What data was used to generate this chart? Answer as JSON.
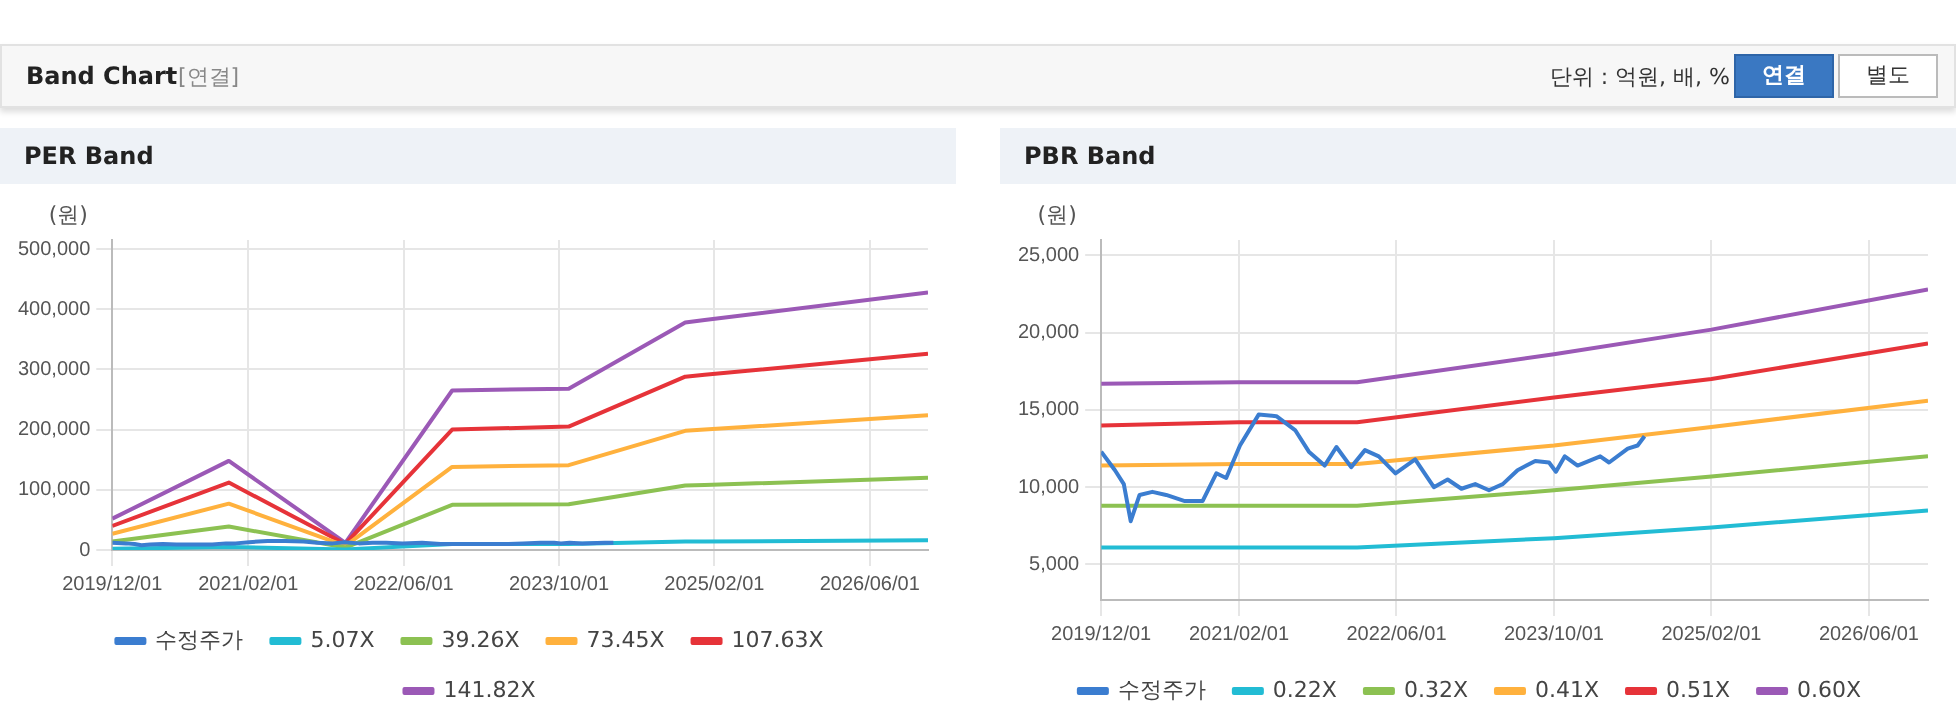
{
  "chart_data": [
    {
      "type": "other",
      "title": "Band Chart",
      "annotations": [
        "[연결]",
        "단위 : 억원, 배, %",
        "연결",
        "별도"
      ]
    },
    {
      "type": "line",
      "title": "PER Band",
      "ylabel": "(원)",
      "legend": "bottom",
      "grid": true,
      "marker": "none",
      "line_style": "solid",
      "xlim": [
        "2019-12-01",
        "2026-12-01"
      ],
      "xticks": [
        {
          "value": "2019-12-01",
          "label": "2019/12/01"
        },
        {
          "value": "2021-02-01",
          "label": "2021/02/01"
        },
        {
          "value": "2022-06-01",
          "label": "2022/06/01"
        },
        {
          "value": "2023-10-01",
          "label": "2023/10/01"
        },
        {
          "value": "2025-02-01",
          "label": "2025/02/01"
        },
        {
          "value": "2026-06-01",
          "label": "2026/06/01"
        }
      ],
      "ylim": [
        0,
        515000
      ],
      "yticks": [
        {
          "value": 0,
          "label": "0"
        },
        {
          "value": 100000,
          "label": "100,000"
        },
        {
          "value": 200000,
          "label": "200,000"
        },
        {
          "value": 300000,
          "label": "300,000"
        },
        {
          "value": 400000,
          "label": "400,000"
        },
        {
          "value": 500000,
          "label": "500,000"
        }
      ],
      "x": [
        "2019-12-01",
        "2020-12-01",
        "2021-12-01",
        "2022-11-01",
        "2023-11-01",
        "2024-11-01",
        "2025-01-01",
        "2026-12-01"
      ],
      "series": [
        {
          "name": "수정주가",
          "color": "#3b7dd0",
          "x": [
            "2019-12-01",
            "2020-01-13",
            "2020-02-10",
            "2020-03-01",
            "2020-03-28",
            "2020-05-07",
            "2020-06-19",
            "2020-08-16",
            "2020-10-10",
            "2020-11-22",
            "2020-12-22",
            "2021-02-04",
            "2021-04-01",
            "2021-05-25",
            "2021-07-22",
            "2021-09-04",
            "2021-10-22",
            "2021-11-28",
            "2022-01-13",
            "2022-02-25",
            "2022-04-07",
            "2022-05-28",
            "2022-07-28",
            "2022-09-25",
            "2022-11-07",
            "2022-12-19",
            "2023-02-01",
            "2023-03-13",
            "2023-04-25",
            "2023-06-10",
            "2023-08-04",
            "2023-09-16",
            "2023-10-07",
            "2023-11-04",
            "2023-12-13",
            "2024-02-22",
            "2024-03-19"
          ],
          "values": [
            12000,
            11000,
            10000,
            8000,
            9000,
            10000,
            9000,
            9000,
            9000,
            11000,
            11000,
            13000,
            15000,
            15000,
            14000,
            12000,
            11000,
            13000,
            11000,
            12000,
            12000,
            11000,
            12000,
            10000,
            10000,
            10000,
            10000,
            10000,
            10000,
            11000,
            12000,
            12000,
            11000,
            12000,
            11000,
            12000,
            12000
          ]
        },
        {
          "name": "5.07X",
          "color": "#22bcd4",
          "values": [
            2000,
            5000,
            1000,
            10000,
            10000,
            14000,
            14000,
            16000
          ]
        },
        {
          "name": "39.26X",
          "color": "#8cc152",
          "values": [
            14000,
            39000,
            4000,
            75000,
            76000,
            107000,
            108000,
            120000
          ]
        },
        {
          "name": "73.45X",
          "color": "#ffb13d",
          "values": [
            27000,
            77000,
            7000,
            138000,
            141000,
            198000,
            200000,
            224000
          ]
        },
        {
          "name": "107.63X",
          "color": "#e63339",
          "values": [
            40000,
            112000,
            10000,
            200000,
            205000,
            288000,
            291000,
            326000
          ]
        },
        {
          "name": "141.82X",
          "color": "#9b59b6",
          "values": [
            52000,
            148000,
            12000,
            265000,
            268000,
            378000,
            382000,
            428000
          ]
        }
      ]
    },
    {
      "type": "line",
      "title": "PBR Band",
      "ylabel": "(원)",
      "legend": "bottom",
      "grid": true,
      "marker": "none",
      "line_style": "solid",
      "xlim": [
        "2019-12-01",
        "2026-12-01"
      ],
      "xticks": [
        {
          "value": "2019-12-01",
          "label": "2019/12/01"
        },
        {
          "value": "2021-02-01",
          "label": "2021/02/01"
        },
        {
          "value": "2022-06-01",
          "label": "2022/06/01"
        },
        {
          "value": "2023-10-01",
          "label": "2023/10/01"
        },
        {
          "value": "2025-02-01",
          "label": "2025/02/01"
        },
        {
          "value": "2026-06-01",
          "label": "2026/06/01"
        }
      ],
      "ylim": [
        2700,
        26000
      ],
      "yticks": [
        {
          "value": 5000,
          "label": "5,000"
        },
        {
          "value": 10000,
          "label": "10,000"
        },
        {
          "value": 15000,
          "label": "15,000"
        },
        {
          "value": 20000,
          "label": "20,000"
        },
        {
          "value": 25000,
          "label": "25,000"
        }
      ],
      "x": [
        "2019-12-01",
        "2021-02-01",
        "2022-02-01",
        "2023-10-01",
        "2025-02-01",
        "2026-12-01"
      ],
      "series": [
        {
          "name": "수정주가",
          "color": "#3b7dd0",
          "x": [
            "2019-12-01",
            "2020-01-13",
            "2020-02-10",
            "2020-03-01",
            "2020-03-28",
            "2020-05-07",
            "2020-06-19",
            "2020-08-16",
            "2020-10-10",
            "2020-11-22",
            "2020-12-22",
            "2021-02-04",
            "2021-04-01",
            "2021-05-25",
            "2021-07-22",
            "2021-09-04",
            "2021-10-22",
            "2021-11-28",
            "2022-01-13",
            "2022-02-25",
            "2022-04-07",
            "2022-05-28",
            "2022-07-28",
            "2022-09-25",
            "2022-11-07",
            "2022-12-19",
            "2023-02-01",
            "2023-03-13",
            "2023-04-25",
            "2023-06-10",
            "2023-08-04",
            "2023-09-16",
            "2023-10-07",
            "2023-11-04",
            "2023-12-13",
            "2024-02-22",
            "2024-03-19",
            "2024-05-16",
            "2024-06-16",
            "2024-07-07"
          ],
          "values": [
            12300,
            11100,
            10200,
            7800,
            9500,
            9700,
            9500,
            9100,
            9100,
            10900,
            10600,
            12700,
            14700,
            14600,
            13700,
            12300,
            11400,
            12600,
            11300,
            12400,
            12000,
            10900,
            11800,
            10000,
            10500,
            9900,
            10200,
            9800,
            10200,
            11100,
            11700,
            11600,
            11000,
            12000,
            11400,
            12000,
            11600,
            12500,
            12700,
            13300
          ]
        },
        {
          "name": "0.22X",
          "color": "#22bcd4",
          "values": [
            6100,
            6100,
            6100,
            6700,
            7400,
            8500
          ]
        },
        {
          "name": "0.32X",
          "color": "#8cc152",
          "values": [
            8800,
            8800,
            8800,
            9800,
            10700,
            12000
          ]
        },
        {
          "name": "0.41X",
          "color": "#ffb13d",
          "values": [
            11400,
            11500,
            11500,
            12700,
            13900,
            15600
          ]
        },
        {
          "name": "0.51X",
          "color": "#e63339",
          "values": [
            14000,
            14200,
            14200,
            15800,
            17000,
            19300
          ]
        },
        {
          "name": "0.60X",
          "color": "#9b59b6",
          "values": [
            16700,
            16800,
            16800,
            18600,
            20200,
            22800
          ]
        }
      ]
    }
  ]
}
